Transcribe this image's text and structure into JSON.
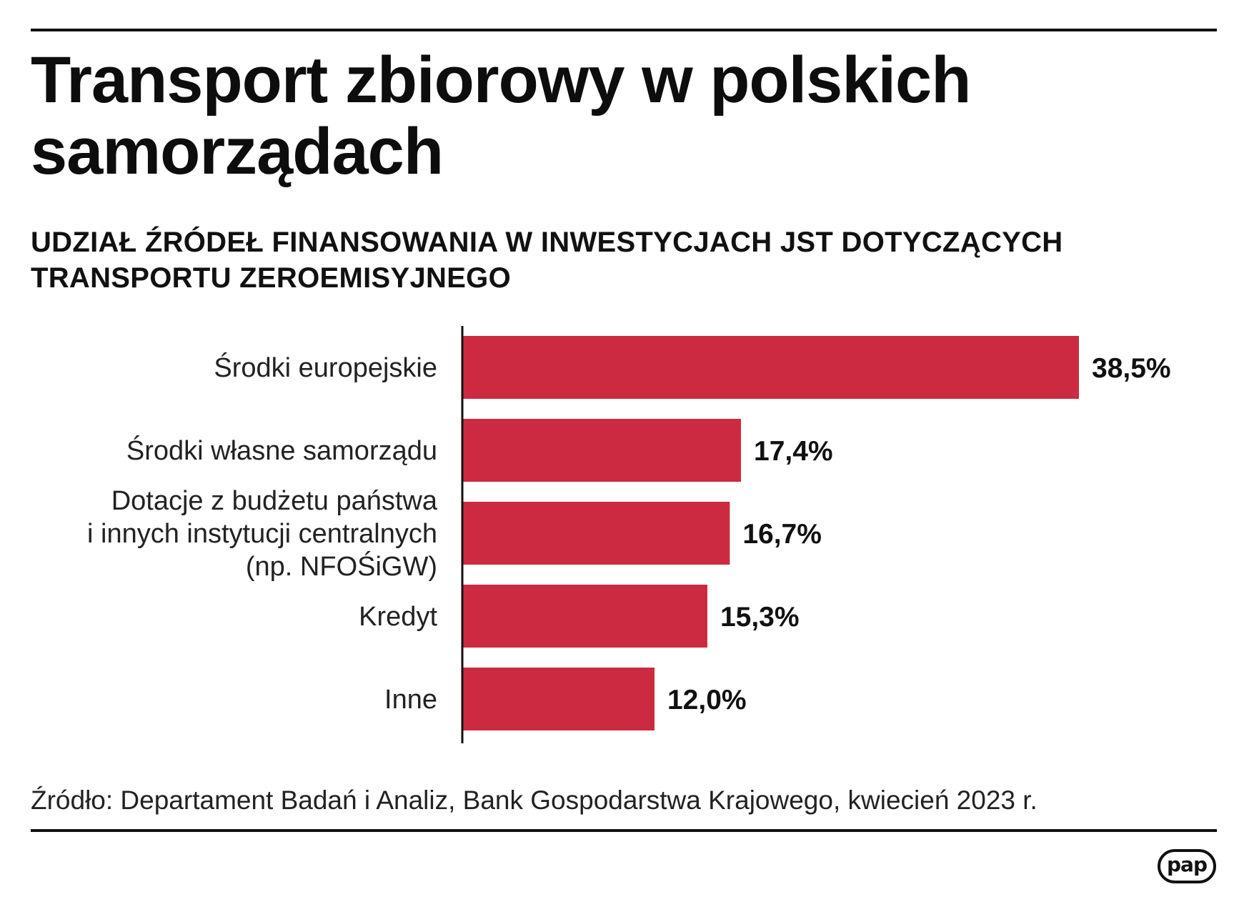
{
  "title": "Transport zbiorowy w polskich samorządach",
  "subtitle": "UDZIAŁ ŹRÓDEŁ FINANSOWANIA W INWESTYCJACH JST DOTYCZĄCYCH TRANSPORTU ZEROEMISYJNEGO",
  "source": "Źródło: Departament Badań i Analiz, Bank Gospodarstwa Krajowego, kwiecień 2023 r.",
  "logo": "pap",
  "colors": {
    "bar": "#cc2a40",
    "text": "#111111",
    "axis": "#111111"
  },
  "chart_data": {
    "type": "bar",
    "orientation": "horizontal",
    "title": "UDZIAŁ ŹRÓDEŁ FINANSOWANIA W INWESTYCJACH JST DOTYCZĄCYCH TRANSPORTU ZEROEMISYJNEGO",
    "unit": "%",
    "categories": [
      [
        "Środki europejskie"
      ],
      [
        "Środki własne samorządu"
      ],
      [
        "Dotacje z budżetu państwa",
        "i innych instytucji centralnych",
        "(np. NFOŚiGW)"
      ],
      [
        "Kredyt"
      ],
      [
        "Inne"
      ]
    ],
    "values": [
      38.5,
      17.4,
      16.7,
      15.3,
      12.0
    ],
    "value_labels": [
      "38,5%",
      "17,4%",
      "16,7%",
      "15,3%",
      "12,0%"
    ],
    "xlim": [
      0,
      40
    ],
    "grid": false,
    "legend": "none"
  }
}
